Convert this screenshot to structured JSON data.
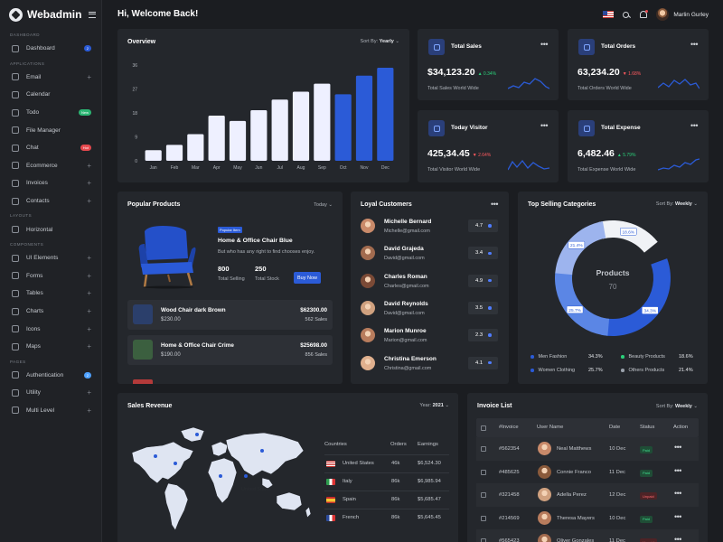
{
  "app": {
    "name": "Webadmin",
    "logo_icon": "webadmin-logo-icon"
  },
  "header": {
    "welcome": "Hi, Welcome Back!",
    "user": "Marlin Gurley"
  },
  "sidebar": {
    "sections": [
      {
        "title": "Dashboard",
        "items": [
          {
            "label": "Dashboard",
            "icon": "dashboard-icon",
            "badge": "2",
            "badge_color": "blue"
          }
        ]
      },
      {
        "title": "Applications",
        "items": [
          {
            "label": "Email",
            "icon": "mail-icon",
            "plus": "+"
          },
          {
            "label": "Calendar",
            "icon": "calendar-icon"
          },
          {
            "label": "Todo",
            "icon": "todo-icon",
            "badge": "New",
            "badge_color": "green"
          },
          {
            "label": "File Manager",
            "icon": "folder-icon"
          },
          {
            "label": "Chat",
            "icon": "chat-icon",
            "badge": "Hot",
            "badge_color": "red"
          },
          {
            "label": "Ecommerce",
            "icon": "cart-icon",
            "plus": "+"
          },
          {
            "label": "Invoices",
            "icon": "invoice-icon",
            "plus": "+"
          },
          {
            "label": "Contacts",
            "icon": "contacts-icon",
            "plus": "+"
          }
        ]
      },
      {
        "title": "Layouts",
        "items": [
          {
            "label": "Horizontal",
            "icon": "layout-icon"
          }
        ]
      },
      {
        "title": "Components",
        "items": [
          {
            "label": "UI Elements",
            "icon": "ui-elements-icon",
            "plus": "+"
          },
          {
            "label": "Forms",
            "icon": "forms-icon",
            "plus": "+"
          },
          {
            "label": "Tables",
            "icon": "tables-icon",
            "plus": "+"
          },
          {
            "label": "Charts",
            "icon": "charts-icon",
            "plus": "+"
          },
          {
            "label": "Icons",
            "icon": "icons-icon",
            "plus": "+"
          },
          {
            "label": "Maps",
            "icon": "maps-icon",
            "plus": "+"
          }
        ]
      },
      {
        "title": "Pages",
        "items": [
          {
            "label": "Authentication",
            "icon": "lock-icon",
            "badge": "2",
            "badge_color": "cyan"
          },
          {
            "label": "Utility",
            "icon": "utility-icon",
            "plus": "+"
          },
          {
            "label": "Multi Level",
            "icon": "multi-level-icon",
            "plus": "+"
          }
        ]
      }
    ]
  },
  "overview": {
    "title": "Overview",
    "sort_label": "Sort By:",
    "sort_value": "Yearly",
    "chart_data": {
      "type": "bar",
      "categories": [
        "Jan",
        "Feb",
        "Mar",
        "Apr",
        "May",
        "Jun",
        "Jul",
        "Aug",
        "Sep",
        "Oct",
        "Nov",
        "Dec"
      ],
      "values": [
        4,
        6,
        10,
        17,
        15,
        19,
        23,
        26,
        29,
        25,
        32,
        35
      ],
      "highlight": [
        false,
        false,
        false,
        false,
        false,
        false,
        false,
        false,
        false,
        true,
        true,
        true
      ],
      "yticks": [
        0,
        9,
        18,
        27,
        36
      ],
      "ylim": [
        0,
        36
      ],
      "bar_color": "#eef0ff",
      "highlight_color": "#2b5bd7"
    }
  },
  "stats": [
    {
      "name": "Total Sales",
      "value": "$34,123.20",
      "change": "0.34%",
      "dir": "up",
      "sub": "Total Sales World Wide",
      "icon": "sales-icon"
    },
    {
      "name": "Total Orders",
      "value": "63,234.20",
      "change": "1.68%",
      "dir": "down",
      "sub": "Total Orders World Wide",
      "icon": "orders-icon"
    },
    {
      "name": "Today Visitor",
      "value": "425,34.45",
      "change": "2.64%",
      "dir": "down",
      "sub": "Total Visitor World Wide",
      "icon": "visitor-icon"
    },
    {
      "name": "Total Expense",
      "value": "6,482.46",
      "change": "5.79%",
      "dir": "up",
      "sub": "Total Expense World Wide",
      "icon": "expense-icon"
    }
  ],
  "popular": {
    "title": "Popular Products",
    "filter": "Today",
    "featured": {
      "tag": "Popular Item",
      "name": "Home & Office Chair Blue",
      "desc": "But who has any right to find chooses enjoy.",
      "total_selling": "800",
      "total_selling_label": "Total Selling",
      "total_stock": "250",
      "total_stock_label": "Total Stock",
      "buy_label": "Buy Now"
    },
    "items": [
      {
        "name": "Wood Chair dark Brown",
        "price": "$230.00",
        "amount": "$62300.00",
        "sales": "562 Sales"
      },
      {
        "name": "Home & Office Chair Crime",
        "price": "$190.00",
        "amount": "$25698.00",
        "sales": "856 Sales"
      }
    ]
  },
  "loyal": {
    "title": "Loyal Customers",
    "customers": [
      {
        "name": "Michelle Bernard",
        "email": "Michelle@gmail.com",
        "score": "4.7"
      },
      {
        "name": "David Grajeda",
        "email": "David@gmail.com",
        "score": "3.4"
      },
      {
        "name": "Charles Roman",
        "email": "Charles@gmail.com",
        "score": "4.9"
      },
      {
        "name": "David Reynolds",
        "email": "David@gmail.com",
        "score": "3.5"
      },
      {
        "name": "Marion Munroe",
        "email": "Marion@gmail.com",
        "score": "2.3"
      },
      {
        "name": "Christina Emerson",
        "email": "Christina@gmail.com",
        "score": "4.1"
      }
    ]
  },
  "categories": {
    "title": "Top Selling Categories",
    "sort_label": "Sort By:",
    "sort_value": "Weekly",
    "center_label": "Products",
    "center_value": "70",
    "chart_data": {
      "type": "pie",
      "labels": [
        "Men Fashion",
        "Beauty Products",
        "Women Clothing",
        "Others Products"
      ],
      "values": [
        34.3,
        18.6,
        25.7,
        21.4
      ],
      "value_labels": [
        "34.3%",
        "18.6%",
        "25.7%",
        "21.4%"
      ],
      "colors": [
        "#2b5bd7",
        "#f0f2f6",
        "#5b86e5",
        "#9db4ee"
      ]
    }
  },
  "revenue": {
    "title": "Sales Revenue",
    "year_label": "Year:",
    "year_value": "2021",
    "map_label": "United States",
    "columns": [
      "Countries",
      "Orders",
      "Earnings"
    ],
    "rows": [
      {
        "country": "United States",
        "orders": "46k",
        "earnings": "$6,524.30"
      },
      {
        "country": "Italy",
        "orders": "86k",
        "earnings": "$6,985.94"
      },
      {
        "country": "Spain",
        "orders": "86k",
        "earnings": "$5,685.47"
      },
      {
        "country": "French",
        "orders": "86k",
        "earnings": "$5,645.45"
      }
    ]
  },
  "invoice": {
    "title": "Invoice List",
    "sort_label": "Sort By:",
    "sort_value": "Weekly",
    "columns": [
      "#Invoice",
      "User Name",
      "Date",
      "Status",
      "Action"
    ],
    "rows": [
      {
        "id": "#562354",
        "user": "Neal Matthews",
        "date": "10 Dec",
        "status": "Paid"
      },
      {
        "id": "#485625",
        "user": "Connie Franco",
        "date": "11 Dec",
        "status": "Paid"
      },
      {
        "id": "#321458",
        "user": "Adella Perez",
        "date": "12 Dec",
        "status": "Unpaid"
      },
      {
        "id": "#214569",
        "user": "Theresa Mayers",
        "date": "10 Dec",
        "status": "Paid"
      },
      {
        "id": "#565423",
        "user": "Oliver Gonzales",
        "date": "11 Dec",
        "status": "Unpaid"
      }
    ]
  }
}
